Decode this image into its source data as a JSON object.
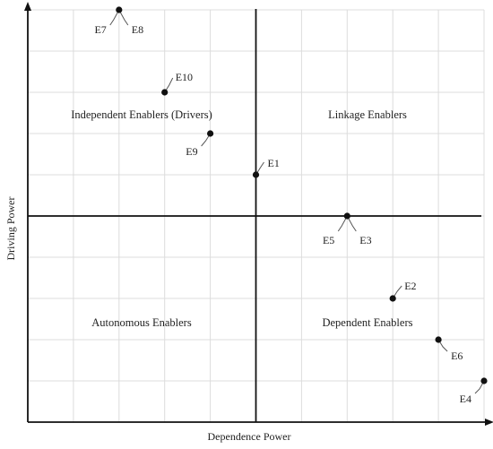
{
  "chart_data": {
    "type": "scatter",
    "title": "",
    "xlabel": "Dependence Power",
    "ylabel": "Driving Power",
    "xlim": [
      0,
      10
    ],
    "ylim": [
      0,
      10
    ],
    "grid": true,
    "midpoint": {
      "x": 5,
      "y": 5
    },
    "quadrants": {
      "top_left": "Independent Enablers (Drivers)",
      "top_right": "Linkage Enablers",
      "bottom_left": "Autonomous Enablers",
      "bottom_right": "Dependent Enablers"
    },
    "points": [
      {
        "x": 2,
        "y": 10,
        "labels": [
          "E7",
          "E8"
        ]
      },
      {
        "x": 3,
        "y": 8,
        "labels": [
          "E10"
        ]
      },
      {
        "x": 4,
        "y": 7,
        "labels": [
          "E9"
        ]
      },
      {
        "x": 5,
        "y": 6,
        "labels": [
          "E1"
        ]
      },
      {
        "x": 7,
        "y": 5,
        "labels": [
          "E5",
          "E3"
        ]
      },
      {
        "x": 8,
        "y": 3,
        "labels": [
          "E2"
        ]
      },
      {
        "x": 9,
        "y": 2,
        "labels": [
          "E6"
        ]
      },
      {
        "x": 10,
        "y": 1,
        "labels": [
          "E4"
        ]
      }
    ]
  }
}
